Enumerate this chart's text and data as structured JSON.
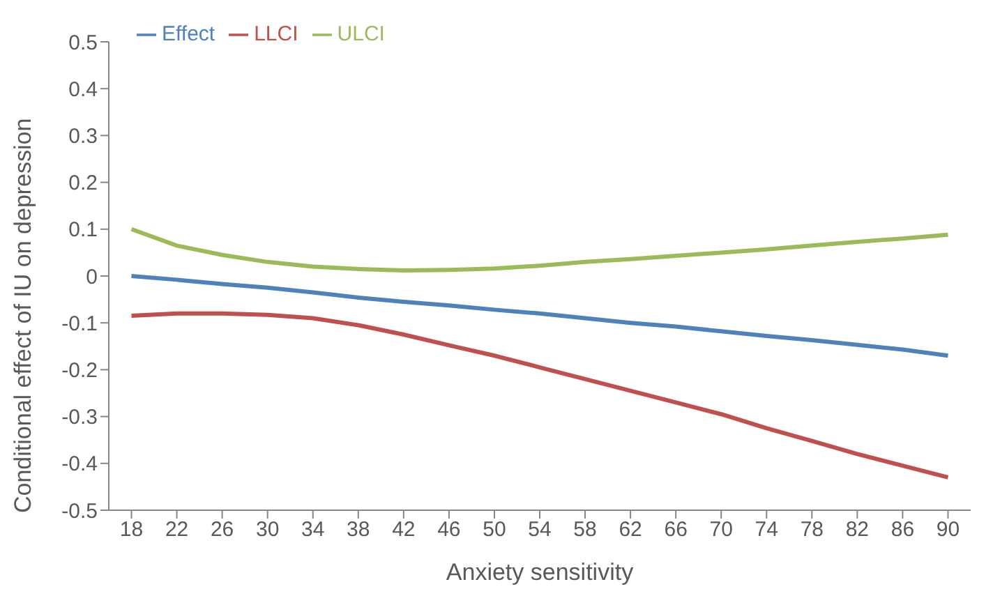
{
  "chart_data": {
    "type": "line",
    "xlabel": "Anxiety sensitivity",
    "ylabel": "Conditional effect of IU on depression",
    "x": [
      18,
      22,
      26,
      30,
      34,
      38,
      42,
      46,
      50,
      54,
      58,
      62,
      66,
      70,
      74,
      78,
      82,
      86,
      90
    ],
    "series": [
      {
        "name": "Effect",
        "color": "#4f81bd",
        "values": [
          0.0,
          -0.008,
          -0.017,
          -0.025,
          -0.035,
          -0.046,
          -0.055,
          -0.063,
          -0.072,
          -0.08,
          -0.09,
          -0.1,
          -0.108,
          -0.118,
          -0.128,
          -0.137,
          -0.147,
          -0.157,
          -0.17
        ]
      },
      {
        "name": "LLCI",
        "color": "#c0504d",
        "values": [
          -0.085,
          -0.08,
          -0.08,
          -0.083,
          -0.09,
          -0.105,
          -0.125,
          -0.148,
          -0.17,
          -0.195,
          -0.22,
          -0.245,
          -0.27,
          -0.295,
          -0.325,
          -0.352,
          -0.38,
          -0.405,
          -0.43
        ]
      },
      {
        "name": "ULCI",
        "color": "#9bbb59",
        "values": [
          0.1,
          0.065,
          0.045,
          0.03,
          0.02,
          0.015,
          0.012,
          0.013,
          0.016,
          0.022,
          0.03,
          0.036,
          0.043,
          0.05,
          0.057,
          0.065,
          0.073,
          0.08,
          0.088
        ]
      }
    ],
    "xlim": [
      16,
      92
    ],
    "xticks": [
      18,
      22,
      26,
      30,
      34,
      38,
      42,
      46,
      50,
      54,
      58,
      62,
      66,
      70,
      74,
      78,
      82,
      86,
      90
    ],
    "ylim": [
      -0.5,
      0.5
    ],
    "yticks": [
      -0.5,
      -0.4,
      -0.3,
      -0.2,
      -0.1,
      0,
      0.1,
      0.2,
      0.3,
      0.4,
      0.5
    ],
    "grid": false,
    "legend": "top",
    "marker": "none",
    "line_style": "solid"
  }
}
